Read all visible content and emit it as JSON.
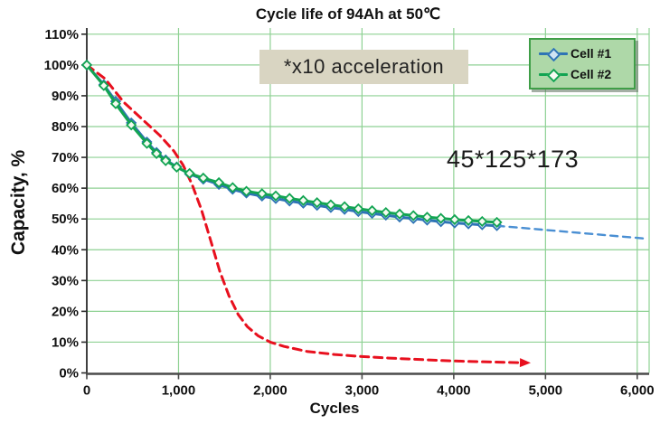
{
  "title": "Cycle life of 94Ah at 50℃",
  "annotation_box": "*x10 acceleration",
  "dims_label": "45*125*173",
  "colors": {
    "grid": "#8ed193",
    "axis_left": "#2b2b2b",
    "axis_bottom": "#4a4a4a",
    "cell1_blue": "#2e74b5",
    "cell1_marker_fill": "#cfe3f3",
    "cell2_green": "#12a452",
    "cell2_marker_fill": "#f4faf0",
    "projection_blue": "#4a8fd3",
    "accel_red": "#e8101e",
    "annotation_bg": "#d9d5c2",
    "legend_bg": "#aed8a8",
    "legend_border": "#3f9e47"
  },
  "legend": {
    "items": [
      {
        "label": "Cell #1",
        "color": "#2e74b5",
        "marker_fill": "#cfe3f3"
      },
      {
        "label": "Cell #2",
        "color": "#12a452",
        "marker_fill": "#f8fbf4"
      }
    ]
  },
  "axes": {
    "x": {
      "label": "Cycles",
      "ticks": [
        0,
        1000,
        2000,
        3000,
        4000,
        5000,
        6000
      ],
      "tick_labels": [
        "0",
        "1,000",
        "2,000",
        "3,000",
        "4,000",
        "5,000",
        "6,000"
      ]
    },
    "y": {
      "label": "Capacity, %",
      "ticks": [
        0,
        10,
        20,
        30,
        40,
        50,
        60,
        70,
        80,
        90,
        100,
        110
      ],
      "tick_labels": [
        "0%",
        "10%",
        "20%",
        "30%",
        "40%",
        "50%",
        "60%",
        "70%",
        "80%",
        "90%",
        "100%",
        "110%"
      ]
    }
  },
  "chart_data": {
    "type": "line",
    "title": "Cycle life of 94Ah at 50℃",
    "xlabel": "Cycles",
    "ylabel": "Capacity, %",
    "xlim": [
      0,
      6130
    ],
    "ylim": [
      0,
      112
    ],
    "grid": true,
    "legend_position": "top-right",
    "annotations": [
      "*x10 acceleration",
      "45*125*173"
    ],
    "series": [
      {
        "name": "Cell #1",
        "color": "#2e74b5",
        "style": "solid",
        "width": 3,
        "marker": "diamond",
        "marker_fill": "#cfe3f3",
        "points": [
          [
            0,
            100
          ],
          [
            185,
            93.6
          ],
          [
            315,
            88.2
          ],
          [
            485,
            81.2
          ],
          [
            655,
            75.0
          ],
          [
            760,
            71.6
          ],
          [
            860,
            69.2
          ],
          [
            980,
            66.9
          ],
          [
            1120,
            64.6
          ],
          [
            1270,
            62.9
          ],
          [
            1440,
            61.2
          ],
          [
            1590,
            59.6
          ],
          [
            1740,
            58.4
          ],
          [
            1910,
            57.4
          ],
          [
            2060,
            56.6
          ],
          [
            2210,
            55.8
          ],
          [
            2360,
            55.1
          ],
          [
            2510,
            54.4
          ],
          [
            2660,
            53.7
          ],
          [
            2810,
            53.1
          ],
          [
            2960,
            52.4
          ],
          [
            3110,
            51.8
          ],
          [
            3260,
            51.2
          ],
          [
            3410,
            50.6
          ],
          [
            3560,
            50.1
          ],
          [
            3710,
            49.6
          ],
          [
            3860,
            49.1
          ],
          [
            4010,
            48.7
          ],
          [
            4160,
            48.4
          ],
          [
            4310,
            48.1
          ],
          [
            4470,
            47.8
          ]
        ]
      },
      {
        "name": "Cell #1 projection",
        "color": "#4a8fd3",
        "style": "dashed",
        "dash": "8 6",
        "width": 2.4,
        "points": [
          [
            4470,
            47.8
          ],
          [
            6100,
            43.6
          ]
        ]
      },
      {
        "name": "x10 accelerated test",
        "color": "#e8101e",
        "style": "dashed",
        "dash": "9 6",
        "width": 3,
        "arrow": true,
        "points": [
          [
            0,
            100
          ],
          [
            200,
            95.5
          ],
          [
            400,
            88
          ],
          [
            600,
            82.5
          ],
          [
            800,
            77
          ],
          [
            950,
            72
          ],
          [
            1050,
            67.5
          ],
          [
            1150,
            61
          ],
          [
            1250,
            53
          ],
          [
            1350,
            43
          ],
          [
            1450,
            33
          ],
          [
            1550,
            25
          ],
          [
            1650,
            19
          ],
          [
            1750,
            15
          ],
          [
            1870,
            12
          ],
          [
            2000,
            10
          ],
          [
            2150,
            8.6
          ],
          [
            2400,
            7
          ],
          [
            2700,
            6
          ],
          [
            3000,
            5.3
          ],
          [
            3300,
            4.8
          ],
          [
            3600,
            4.4
          ],
          [
            3900,
            4.0
          ],
          [
            4200,
            3.7
          ],
          [
            4500,
            3.5
          ],
          [
            4780,
            3.3
          ]
        ]
      },
      {
        "name": "Cell #2",
        "color": "#12a452",
        "style": "solid",
        "width": 3,
        "marker": "diamond",
        "marker_fill": "#f4faf0",
        "points": [
          [
            0,
            100
          ],
          [
            185,
            93.3
          ],
          [
            315,
            87.4
          ],
          [
            485,
            80.5
          ],
          [
            655,
            74.5
          ],
          [
            760,
            71.2
          ],
          [
            860,
            68.9
          ],
          [
            980,
            66.8
          ],
          [
            1120,
            64.8
          ],
          [
            1270,
            63.3
          ],
          [
            1440,
            61.8
          ],
          [
            1590,
            60.2
          ],
          [
            1740,
            59.0
          ],
          [
            1910,
            58.2
          ],
          [
            2060,
            57.5
          ],
          [
            2210,
            56.7
          ],
          [
            2360,
            56.0
          ],
          [
            2510,
            55.3
          ],
          [
            2660,
            54.6
          ],
          [
            2810,
            54.0
          ],
          [
            2960,
            53.3
          ],
          [
            3110,
            52.7
          ],
          [
            3260,
            52.1
          ],
          [
            3410,
            51.6
          ],
          [
            3560,
            51.1
          ],
          [
            3710,
            50.6
          ],
          [
            3860,
            50.2
          ],
          [
            4010,
            49.8
          ],
          [
            4160,
            49.5
          ],
          [
            4310,
            49.2
          ],
          [
            4470,
            48.9
          ]
        ]
      }
    ]
  }
}
